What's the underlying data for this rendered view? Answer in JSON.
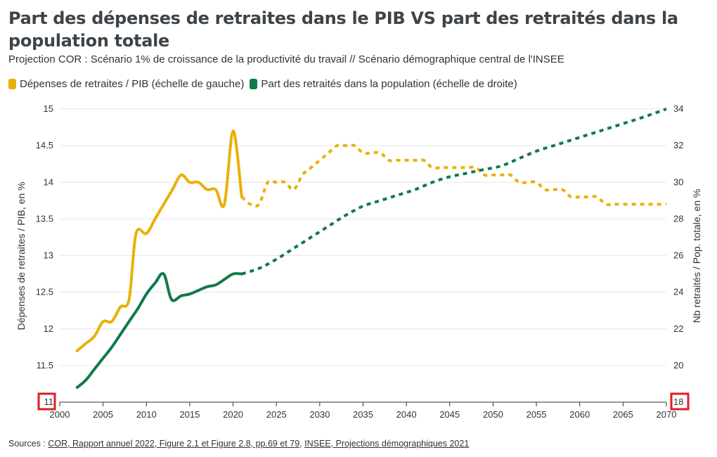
{
  "header": {
    "title": "Part des dépenses de retraites dans le PIB VS part des retraités dans la population totale",
    "subtitle": "Projection COR : Scénario 1% de croissance de la productivité du travail // Scénario démographique central de l'INSEE"
  },
  "legend": [
    {
      "label": "Dépenses de retraites / PIB (échelle de gauche)",
      "color": "#e8b10a"
    },
    {
      "label": "Part des retraités dans la population (échelle de droite)",
      "color": "#117a4a"
    }
  ],
  "source": {
    "prefix": "Sources : ",
    "link1": "COR, Rapport annuel 2022, Figure 2.1 et Figure 2.8, pp.69 et 79",
    "sep": ", ",
    "link2": "INSEE, Projections démographiques 2021"
  },
  "chart_data": {
    "type": "line",
    "xlabel": "",
    "ylabel_left": "Dépenses de retraites / PIB, en %",
    "ylabel_right": "Nb retraités / Pop. totale, en %",
    "xlim": [
      2000,
      2070
    ],
    "ylim_left": [
      11,
      15
    ],
    "ylim_right": [
      18,
      34
    ],
    "x_ticks": [
      2000,
      2005,
      2010,
      2015,
      2020,
      2025,
      2030,
      2035,
      2040,
      2045,
      2050,
      2055,
      2060,
      2065,
      2070
    ],
    "y_ticks_left": [
      "11",
      "11.5",
      "12",
      "12.5",
      "13",
      "13.5",
      "14",
      "14.5",
      "15"
    ],
    "y_ticks_right": [
      "18",
      "20",
      "22",
      "24",
      "26",
      "28",
      "30",
      "32",
      "34"
    ],
    "grid": "horizontal",
    "highlighted_ticks": [
      "11",
      "18"
    ],
    "series": [
      {
        "name": "Dépenses de retraites / PIB (échelle de gauche)",
        "axis": "left",
        "color": "#e8b10a",
        "observed": [
          [
            2002,
            11.7
          ],
          [
            2003,
            11.8
          ],
          [
            2004,
            11.9
          ],
          [
            2005,
            12.1
          ],
          [
            2006,
            12.1
          ],
          [
            2007,
            12.3
          ],
          [
            2008,
            12.4
          ],
          [
            2008.8,
            13.3
          ],
          [
            2010,
            13.3
          ],
          [
            2011,
            13.5
          ],
          [
            2012,
            13.7
          ],
          [
            2013,
            13.9
          ],
          [
            2014,
            14.1
          ],
          [
            2015,
            14.0
          ],
          [
            2016,
            14.0
          ],
          [
            2017,
            13.9
          ],
          [
            2018,
            13.9
          ],
          [
            2019,
            13.7
          ],
          [
            2020,
            14.7
          ],
          [
            2021,
            13.8
          ]
        ],
        "projection": [
          [
            2021,
            13.8
          ],
          [
            2022,
            13.7
          ],
          [
            2023,
            13.7
          ],
          [
            2024,
            14.0
          ],
          [
            2025,
            14.0
          ],
          [
            2026,
            14.0
          ],
          [
            2027,
            13.9
          ],
          [
            2028,
            14.1
          ],
          [
            2029,
            14.2
          ],
          [
            2030,
            14.3
          ],
          [
            2031,
            14.4
          ],
          [
            2032,
            14.5
          ],
          [
            2033,
            14.5
          ],
          [
            2034,
            14.5
          ],
          [
            2035,
            14.4
          ],
          [
            2036,
            14.4
          ],
          [
            2037,
            14.4
          ],
          [
            2038,
            14.3
          ],
          [
            2039,
            14.3
          ],
          [
            2040,
            14.3
          ],
          [
            2041,
            14.3
          ],
          [
            2042,
            14.3
          ],
          [
            2043,
            14.2
          ],
          [
            2044,
            14.2
          ],
          [
            2045,
            14.2
          ],
          [
            2046,
            14.2
          ],
          [
            2047,
            14.2
          ],
          [
            2048,
            14.2
          ],
          [
            2049,
            14.1
          ],
          [
            2050,
            14.1
          ],
          [
            2051,
            14.1
          ],
          [
            2052,
            14.1
          ],
          [
            2053,
            14.0
          ],
          [
            2054,
            14.0
          ],
          [
            2055,
            14.0
          ],
          [
            2056,
            13.9
          ],
          [
            2057,
            13.9
          ],
          [
            2058,
            13.9
          ],
          [
            2059,
            13.8
          ],
          [
            2060,
            13.8
          ],
          [
            2061,
            13.8
          ],
          [
            2062,
            13.8
          ],
          [
            2063,
            13.7
          ],
          [
            2064,
            13.7
          ],
          [
            2065,
            13.7
          ],
          [
            2066,
            13.7
          ],
          [
            2067,
            13.7
          ],
          [
            2068,
            13.7
          ],
          [
            2069,
            13.7
          ],
          [
            2070,
            13.7
          ]
        ]
      },
      {
        "name": "Part des retraités dans la population (échelle de droite)",
        "axis": "right",
        "color": "#117a4a",
        "observed": [
          [
            2002,
            18.8
          ],
          [
            2003,
            19.2
          ],
          [
            2004,
            19.8
          ],
          [
            2005,
            20.4
          ],
          [
            2006,
            21.0
          ],
          [
            2007,
            21.7
          ],
          [
            2008,
            22.4
          ],
          [
            2009,
            23.1
          ],
          [
            2010,
            23.9
          ],
          [
            2011,
            24.5
          ],
          [
            2012,
            25.0
          ],
          [
            2012.9,
            23.6
          ],
          [
            2014,
            23.8
          ],
          [
            2015,
            23.9
          ],
          [
            2016,
            24.1
          ],
          [
            2017,
            24.3
          ],
          [
            2018,
            24.4
          ],
          [
            2019,
            24.7
          ],
          [
            2020,
            25.0
          ],
          [
            2021,
            25.0
          ]
        ],
        "projection": [
          [
            2021,
            25.0
          ],
          [
            2023,
            25.3
          ],
          [
            2025,
            25.8
          ],
          [
            2027,
            26.4
          ],
          [
            2029,
            27.0
          ],
          [
            2031,
            27.6
          ],
          [
            2033,
            28.2
          ],
          [
            2035,
            28.7
          ],
          [
            2037,
            29.0
          ],
          [
            2039,
            29.3
          ],
          [
            2041,
            29.6
          ],
          [
            2043,
            30.0
          ],
          [
            2045,
            30.3
          ],
          [
            2047,
            30.5
          ],
          [
            2049,
            30.7
          ],
          [
            2051,
            30.9
          ],
          [
            2053,
            31.3
          ],
          [
            2055,
            31.7
          ],
          [
            2057,
            32.0
          ],
          [
            2059,
            32.3
          ],
          [
            2061,
            32.6
          ],
          [
            2063,
            32.9
          ],
          [
            2065,
            33.2
          ],
          [
            2067,
            33.5
          ],
          [
            2070,
            34.0
          ]
        ]
      }
    ]
  }
}
